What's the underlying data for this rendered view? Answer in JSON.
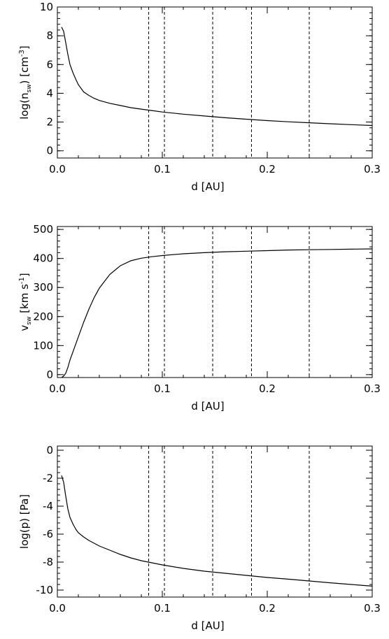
{
  "chart_data": [
    {
      "type": "line",
      "xlabel": "d [AU]",
      "ylabel_parts": {
        "a": "log(n",
        "sub": "sw",
        "b": ") [cm",
        "sup": "-3",
        "c": "]"
      },
      "xlim": [
        0.0,
        0.3
      ],
      "ylim": [
        -0.5,
        10
      ],
      "x_ticks": [
        "0.0",
        "0.1",
        "0.2",
        "0.3"
      ],
      "x_tick_values": [
        0.0,
        0.1,
        0.2,
        0.3
      ],
      "y_ticks": [
        "0",
        "2",
        "4",
        "6",
        "8",
        "10"
      ],
      "y_tick_values": [
        0,
        2,
        4,
        6,
        8,
        10
      ],
      "vlines": [
        0.087,
        0.102,
        0.148,
        0.185,
        0.24
      ],
      "series": [
        {
          "x": [
            0.004,
            0.006,
            0.008,
            0.01,
            0.012,
            0.015,
            0.018,
            0.02,
            0.025,
            0.03,
            0.035,
            0.04,
            0.05,
            0.06,
            0.07,
            0.08,
            0.09,
            0.1,
            0.12,
            0.14,
            0.16,
            0.18,
            0.2,
            0.22,
            0.24,
            0.26,
            0.28,
            0.3
          ],
          "y": [
            8.6,
            8.3,
            7.5,
            6.7,
            6.0,
            5.4,
            4.9,
            4.6,
            4.1,
            3.85,
            3.65,
            3.5,
            3.3,
            3.15,
            3.0,
            2.9,
            2.8,
            2.7,
            2.55,
            2.42,
            2.3,
            2.2,
            2.1,
            2.02,
            1.95,
            1.88,
            1.82,
            1.76
          ]
        }
      ]
    },
    {
      "type": "line",
      "xlabel": "d [AU]",
      "ylabel_parts": {
        "a": "v",
        "sub": "sw",
        "b": " [km s",
        "sup": "-1",
        "c": "]"
      },
      "xlim": [
        0.0,
        0.3
      ],
      "ylim": [
        -10,
        510
      ],
      "x_ticks": [
        "0.0",
        "0.1",
        "0.2",
        "0.3"
      ],
      "x_tick_values": [
        0.0,
        0.1,
        0.2,
        0.3
      ],
      "y_ticks": [
        "0",
        "100",
        "200",
        "300",
        "400",
        "500"
      ],
      "y_tick_values": [
        0,
        100,
        200,
        300,
        400,
        500
      ],
      "vlines": [
        0.087,
        0.102,
        0.148,
        0.185,
        0.24
      ],
      "series": [
        {
          "x": [
            0.004,
            0.006,
            0.008,
            0.01,
            0.012,
            0.015,
            0.02,
            0.025,
            0.03,
            0.035,
            0.04,
            0.05,
            0.06,
            0.07,
            0.08,
            0.09,
            0.1,
            0.12,
            0.14,
            0.16,
            0.18,
            0.2,
            0.22,
            0.24,
            0.26,
            0.28,
            0.3
          ],
          "y": [
            -10,
            -5,
            5,
            25,
            50,
            80,
            130,
            180,
            225,
            265,
            298,
            345,
            375,
            392,
            401,
            406,
            410,
            416,
            420,
            423,
            425,
            427,
            429,
            430,
            431,
            432,
            433
          ]
        }
      ]
    },
    {
      "type": "line",
      "xlabel": "d [AU]",
      "ylabel_parts": {
        "a": "log(p) [Pa]",
        "sub": "",
        "b": "",
        "sup": "",
        "c": ""
      },
      "xlim": [
        0.0,
        0.3
      ],
      "ylim": [
        -10.5,
        0.3
      ],
      "x_ticks": [
        "0.0",
        "0.1",
        "0.2",
        "0.3"
      ],
      "x_tick_values": [
        0.0,
        0.1,
        0.2,
        0.3
      ],
      "y_ticks": [
        "0",
        "-2",
        "-4",
        "-6",
        "-8",
        "-10"
      ],
      "y_tick_values": [
        0,
        -2,
        -4,
        -6,
        -8,
        -10
      ],
      "vlines": [
        0.087,
        0.102,
        0.148,
        0.185,
        0.24
      ],
      "series": [
        {
          "x": [
            0.004,
            0.006,
            0.008,
            0.01,
            0.012,
            0.015,
            0.018,
            0.02,
            0.025,
            0.03,
            0.04,
            0.05,
            0.06,
            0.07,
            0.08,
            0.09,
            0.1,
            0.12,
            0.14,
            0.16,
            0.18,
            0.2,
            0.22,
            0.24,
            0.26,
            0.28,
            0.3
          ],
          "y": [
            -1.8,
            -2.3,
            -3.3,
            -4.2,
            -4.8,
            -5.3,
            -5.7,
            -5.9,
            -6.2,
            -6.45,
            -6.85,
            -7.15,
            -7.45,
            -7.7,
            -7.9,
            -8.05,
            -8.2,
            -8.45,
            -8.65,
            -8.8,
            -8.95,
            -9.1,
            -9.22,
            -9.35,
            -9.48,
            -9.6,
            -9.72
          ]
        }
      ]
    }
  ]
}
